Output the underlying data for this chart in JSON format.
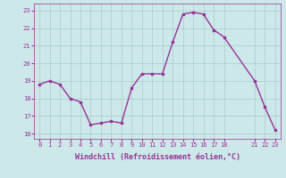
{
  "x": [
    0,
    1,
    2,
    3,
    4,
    5,
    6,
    7,
    8,
    9,
    10,
    11,
    12,
    13,
    14,
    15,
    16,
    17,
    18,
    21,
    22,
    23
  ],
  "y": [
    18.8,
    19.0,
    18.8,
    18.0,
    17.8,
    16.5,
    16.6,
    16.7,
    16.6,
    18.6,
    19.4,
    19.4,
    19.4,
    21.2,
    22.8,
    22.9,
    22.8,
    21.9,
    21.5,
    19.0,
    17.5,
    16.2
  ],
  "line_color": "#993399",
  "marker": "s",
  "marker_size": 2.0,
  "bg_color": "#cce8e8",
  "grid_color": "#aacccc",
  "xlabel": "Windchill (Refroidissement éolien,°C)",
  "xticks": [
    0,
    1,
    2,
    3,
    4,
    5,
    6,
    7,
    8,
    9,
    10,
    11,
    12,
    13,
    14,
    15,
    16,
    17,
    18,
    21,
    22,
    23
  ],
  "yticks": [
    16,
    17,
    18,
    19,
    20,
    21,
    22,
    23
  ],
  "ylim": [
    15.7,
    23.4
  ],
  "xlim": [
    -0.5,
    23.5
  ],
  "xlabel_color": "#993399",
  "tick_color": "#993399",
  "linewidth": 1.0,
  "tick_fontsize": 5.0,
  "xlabel_fontsize": 6.0
}
